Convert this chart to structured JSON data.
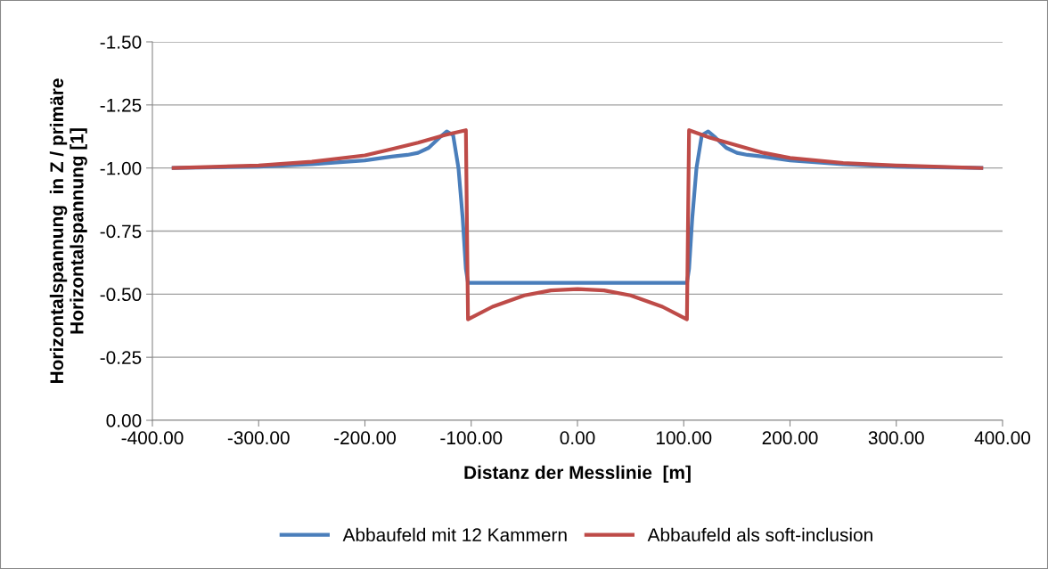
{
  "chart_data": {
    "type": "line",
    "xlabel": "Distanz der Messlinie  [m]",
    "ylabel": "Horizontalspannung  in Z / primäre\nHorizontalspannung [1]",
    "xlim": [
      -400,
      400
    ],
    "xticks": [
      {
        "value": -400,
        "label": "-400.00"
      },
      {
        "value": -300,
        "label": "-300.00"
      },
      {
        "value": -200,
        "label": "-200.00"
      },
      {
        "value": -100,
        "label": "-100.00"
      },
      {
        "value": 0,
        "label": "0.00"
      },
      {
        "value": 100,
        "label": "100.00"
      },
      {
        "value": 200,
        "label": "200.00"
      },
      {
        "value": 300,
        "label": "300.00"
      },
      {
        "value": 400,
        "label": "400.00"
      }
    ],
    "ylim": [
      0,
      -1.5
    ],
    "yticks": [
      {
        "value": 0,
        "label": "0.00"
      },
      {
        "value": -0.25,
        "label": "-0.25"
      },
      {
        "value": -0.5,
        "label": "-0.50"
      },
      {
        "value": -0.75,
        "label": "-0.75"
      },
      {
        "value": -1.0,
        "label": "-1.00"
      },
      {
        "value": -1.25,
        "label": "-1.25"
      },
      {
        "value": -1.5,
        "label": "-1.50"
      }
    ],
    "grid": "y",
    "legend": "bottom",
    "marker": "none",
    "line_style": "solid",
    "series": [
      {
        "name": "Abbaufeld mit 12 Kammern",
        "color": "#4a7ebb",
        "x": [
          -380,
          -300,
          -250,
          -200,
          -175,
          -160,
          -150,
          -140,
          -130,
          -123,
          -117,
          -112,
          -108,
          -105,
          -103,
          0,
          103,
          105,
          108,
          112,
          117,
          123,
          130,
          140,
          150,
          160,
          175,
          200,
          250,
          300,
          380
        ],
        "values": [
          -1.0,
          -1.005,
          -1.015,
          -1.03,
          -1.045,
          -1.052,
          -1.06,
          -1.08,
          -1.12,
          -1.145,
          -1.13,
          -1.0,
          -0.8,
          -0.6,
          -0.545,
          -0.545,
          -0.545,
          -0.6,
          -0.8,
          -1.0,
          -1.13,
          -1.145,
          -1.12,
          -1.08,
          -1.06,
          -1.052,
          -1.045,
          -1.03,
          -1.015,
          -1.005,
          -1.0
        ]
      },
      {
        "name": "Abbaufeld als soft-inclusion",
        "color": "#be4b48",
        "x": [
          -380,
          -300,
          -250,
          -200,
          -175,
          -150,
          -125,
          -105,
          -103,
          -80,
          -50,
          -25,
          0,
          25,
          50,
          80,
          103,
          105,
          125,
          150,
          175,
          200,
          250,
          300,
          380
        ],
        "values": [
          -1.0,
          -1.01,
          -1.025,
          -1.05,
          -1.075,
          -1.1,
          -1.13,
          -1.15,
          -0.4,
          -0.45,
          -0.495,
          -0.515,
          -0.52,
          -0.515,
          -0.495,
          -0.45,
          -0.4,
          -1.15,
          -1.12,
          -1.09,
          -1.06,
          -1.04,
          -1.02,
          -1.01,
          -1.0
        ]
      }
    ]
  }
}
